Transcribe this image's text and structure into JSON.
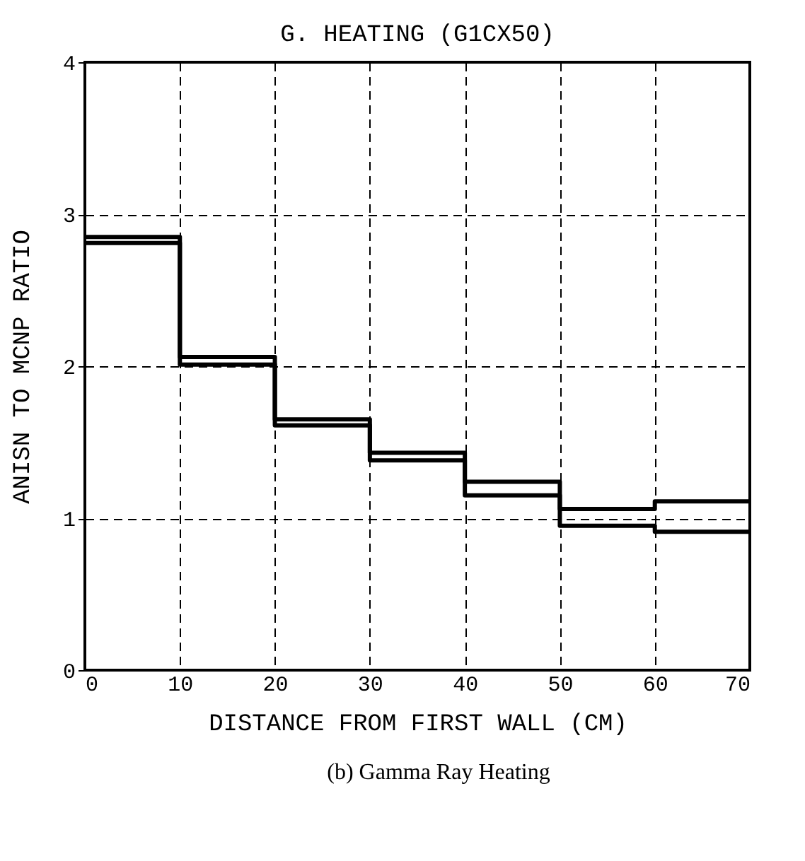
{
  "chart_data": {
    "type": "step",
    "title": "G. HEATING (G1CX50)",
    "xlabel": "DISTANCE FROM FIRST WALL  (CM)",
    "ylabel": "ANISN TO MCNP RATIO",
    "annotations": [
      "(b) Gamma Ray Heating"
    ],
    "x": [
      0,
      10,
      20,
      30,
      40,
      50,
      60,
      70
    ],
    "series": [
      {
        "color": "#000000",
        "values": [
          2.85,
          2.06,
          1.65,
          1.43,
          1.24,
          1.06,
          1.11,
          1.11
        ]
      },
      {
        "color": "#000000",
        "values": [
          2.81,
          2.01,
          1.61,
          1.38,
          1.15,
          0.95,
          0.91,
          0.91
        ]
      }
    ],
    "xlim": [
      0,
      70
    ],
    "xticks": [
      0,
      10,
      20,
      30,
      40,
      50,
      60,
      70
    ],
    "ylim": [
      0,
      4
    ],
    "yticks": [
      0,
      1,
      2,
      3,
      4
    ],
    "grid": true
  }
}
